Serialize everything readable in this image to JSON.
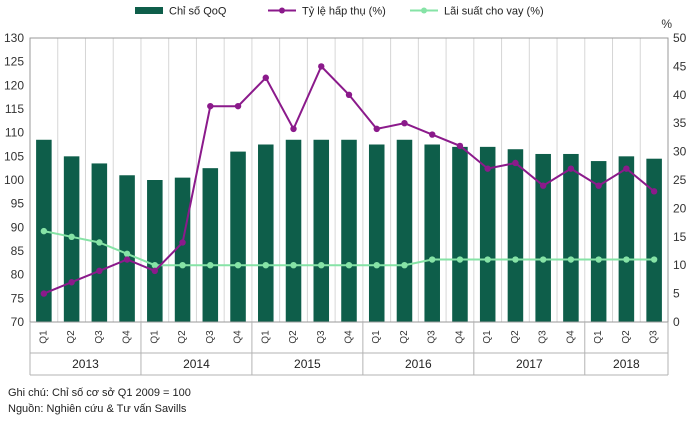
{
  "chart_data": {
    "type": "bar+line",
    "legend": [
      {
        "key": "index",
        "label": "Chỉ số QoQ",
        "color": "#0e5e4a",
        "shape": "bar"
      },
      {
        "key": "absorption",
        "label": "Tỷ lệ hấp thụ (%)",
        "color": "#8b1a8b",
        "shape": "line"
      },
      {
        "key": "rate",
        "label": "Lãi suất cho vay (%)",
        "color": "#86e3a6",
        "shape": "line"
      }
    ],
    "quarters": [
      "Q1",
      "Q2",
      "Q3",
      "Q4",
      "Q1",
      "Q2",
      "Q3",
      "Q4",
      "Q1",
      "Q2",
      "Q3",
      "Q4",
      "Q1",
      "Q2",
      "Q3",
      "Q4",
      "Q1",
      "Q2",
      "Q3",
      "Q4",
      "Q1",
      "Q2",
      "Q3"
    ],
    "years": [
      {
        "label": "2013",
        "count": 4
      },
      {
        "label": "2014",
        "count": 4
      },
      {
        "label": "2015",
        "count": 4
      },
      {
        "label": "2016",
        "count": 4
      },
      {
        "label": "2017",
        "count": 4
      },
      {
        "label": "2018",
        "count": 3
      }
    ],
    "series": [
      {
        "name": "Chỉ số QoQ",
        "axis": "left",
        "values": [
          108.5,
          105,
          103.5,
          101,
          100,
          100.5,
          102.5,
          106,
          107.5,
          108.5,
          108.5,
          108.5,
          107.5,
          108.5,
          107.5,
          107,
          107,
          106.5,
          105.5,
          105.5,
          104,
          105,
          104.5
        ]
      },
      {
        "name": "Tỷ lệ hấp thụ (%)",
        "axis": "right",
        "values": [
          5,
          7,
          9,
          11,
          9,
          14,
          38,
          38,
          43,
          34,
          45,
          40,
          34,
          35,
          33,
          31,
          27,
          28,
          24,
          27,
          24,
          27,
          23
        ]
      },
      {
        "name": "Lãi suất cho vay (%)",
        "axis": "right",
        "values": [
          16,
          15,
          14,
          12,
          10,
          10,
          10,
          10,
          10,
          10,
          10,
          10,
          10,
          10,
          11,
          11,
          11,
          11,
          11,
          11,
          11,
          11,
          11
        ]
      }
    ],
    "left_axis": {
      "min": 70,
      "max": 130,
      "step": 5,
      "ticks": [
        "70",
        "75",
        "80",
        "85",
        "90",
        "95",
        "100",
        "105",
        "110",
        "115",
        "120",
        "125",
        "130"
      ]
    },
    "right_axis": {
      "min": 0,
      "max": 50,
      "step": 5,
      "unit": "%",
      "ticks": [
        "0",
        "5",
        "10",
        "15",
        "20",
        "25",
        "30",
        "35",
        "40",
        "45",
        "50"
      ]
    },
    "grid": "vertical"
  },
  "notes": {
    "line1": "Ghi chú: Chỉ số cơ sở  Q1 2009 = 100",
    "line2": "Nguồn: Nghiên cứu & Tư vấn Savills"
  }
}
